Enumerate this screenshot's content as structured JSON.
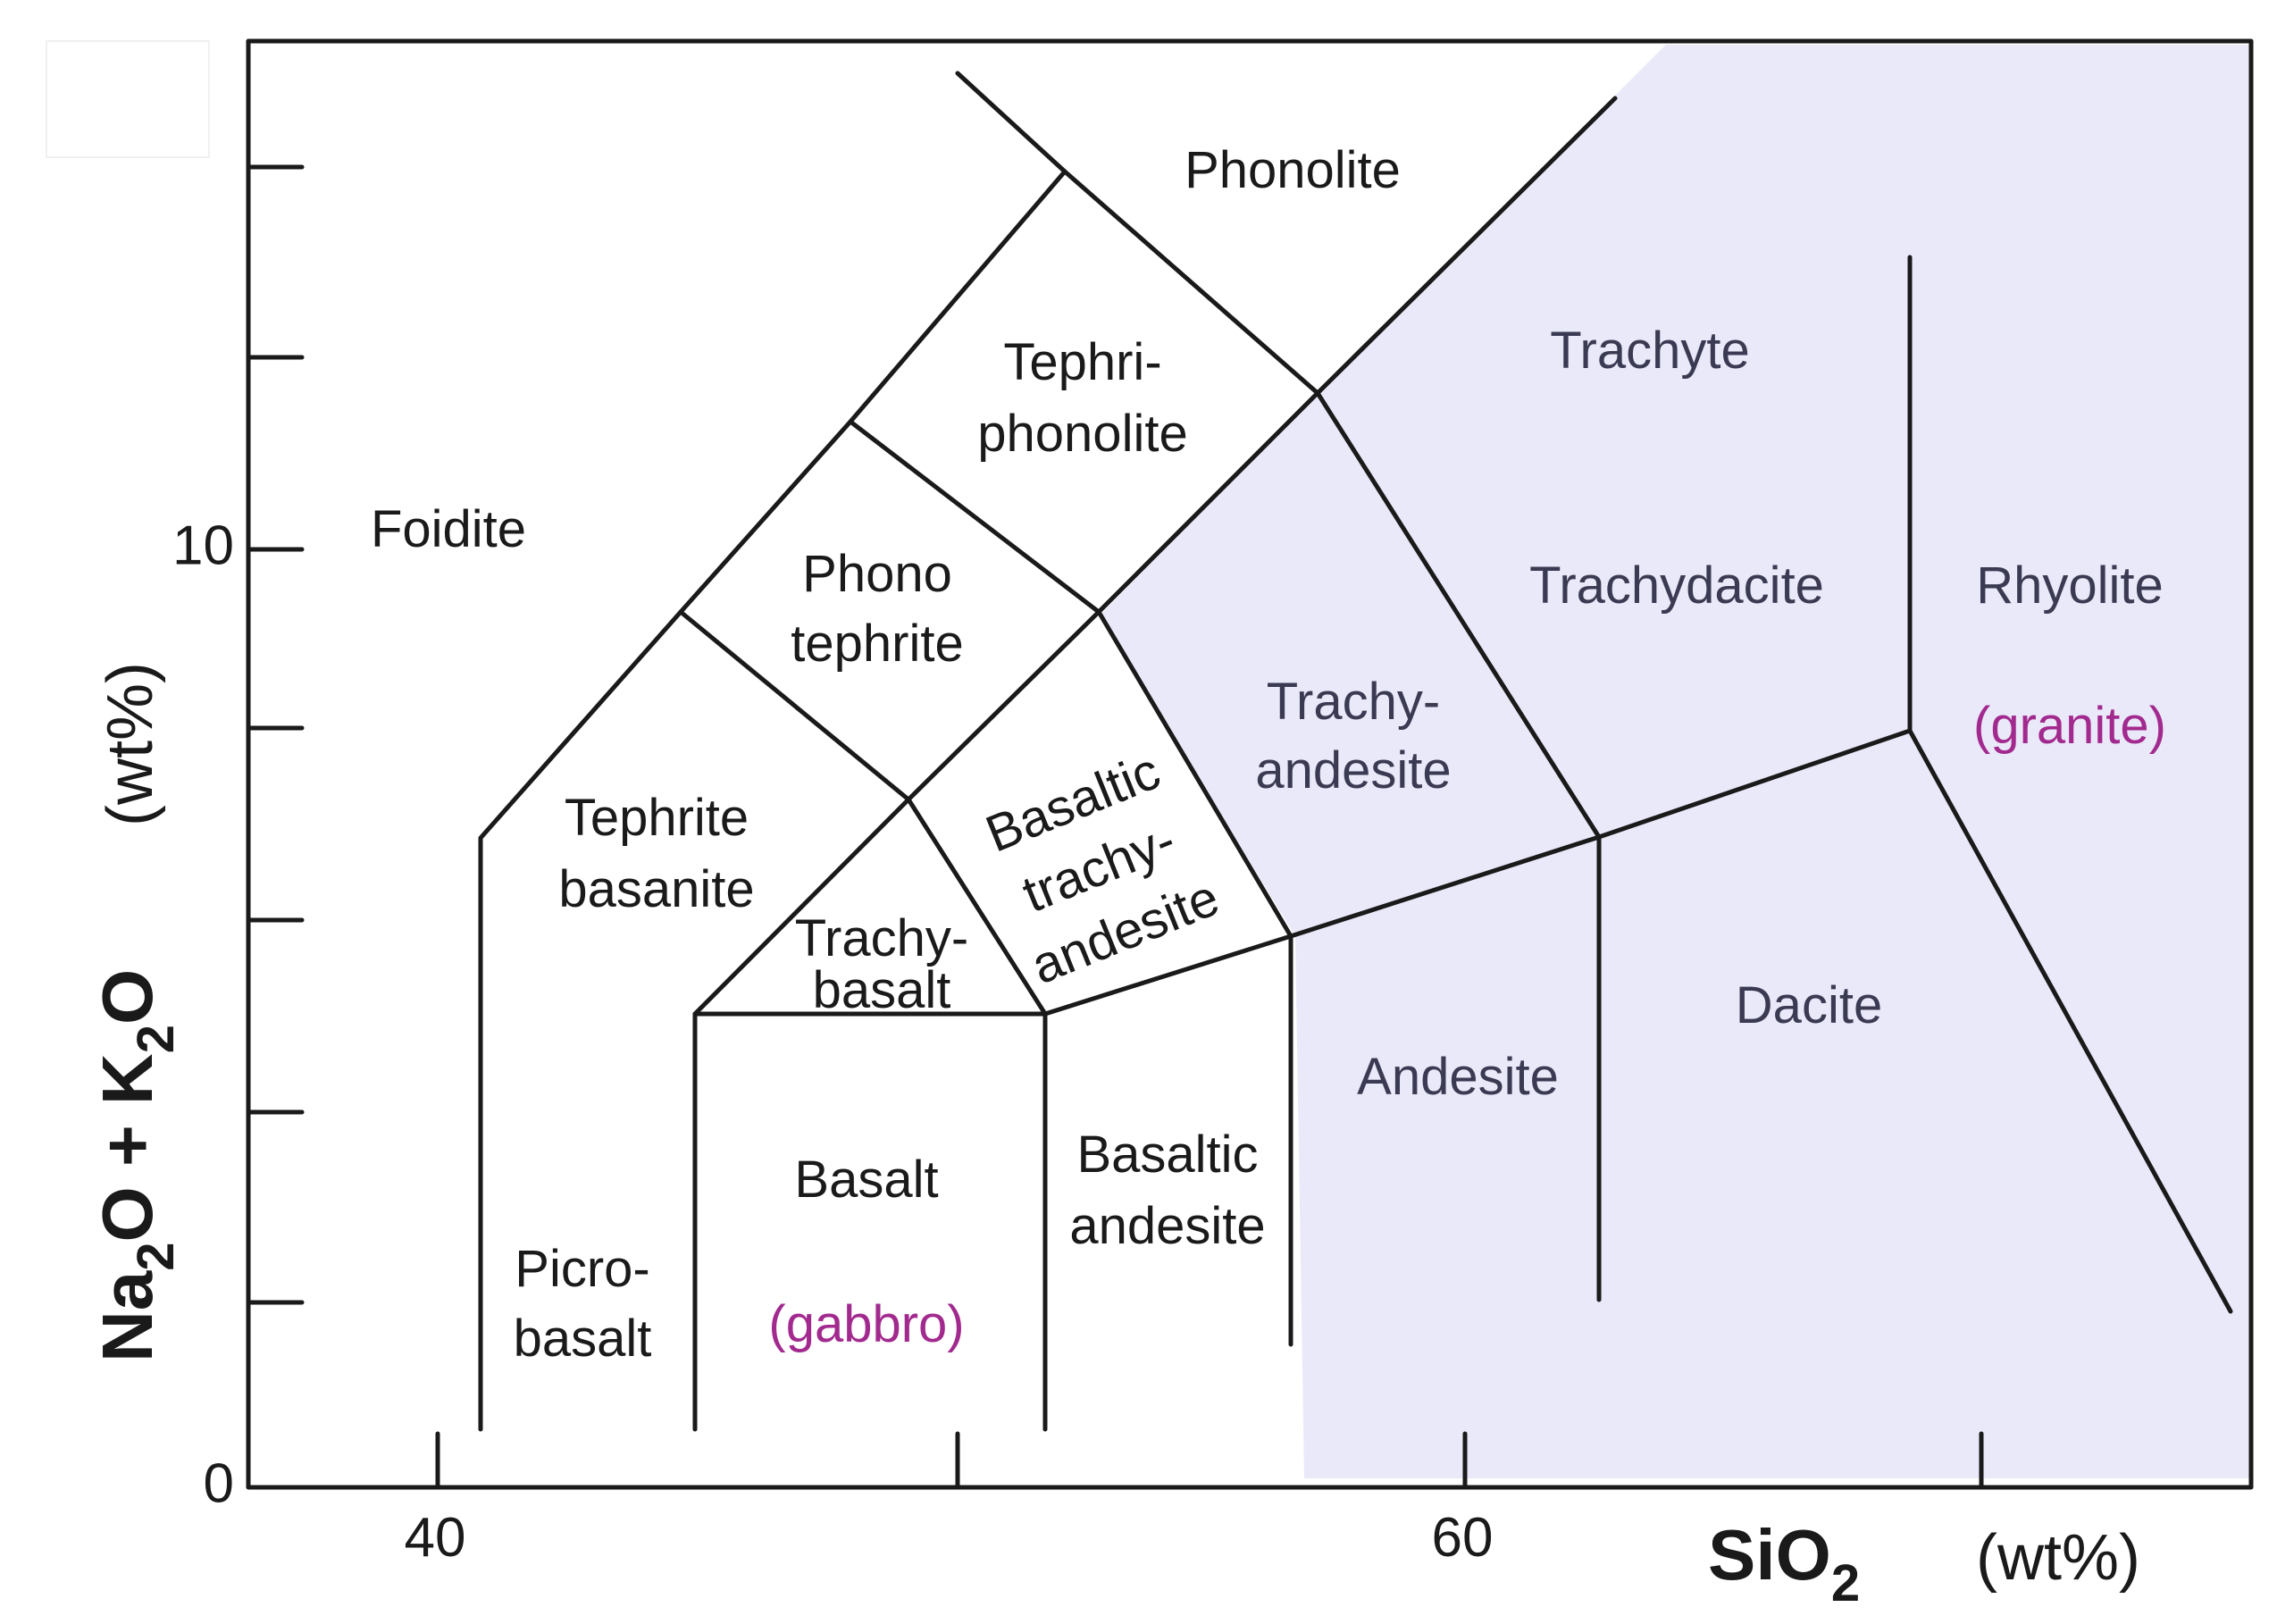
{
  "colors": {
    "highlight": "#eae9f9",
    "line": "#1a1a1a",
    "rock_name": "#a22a8e"
  },
  "axes": {
    "x_label_main": "SiO",
    "x_label_sub": "2",
    "x_unit": "(wt%)",
    "y_label_a": "Na",
    "y_label_a_sub": "2",
    "y_label_b": "O + K",
    "y_label_b_sub": "2",
    "y_label_c": "O",
    "y_unit": "(wt%)",
    "x_ticks": [
      "40",
      "60"
    ],
    "y_ticks": [
      "0",
      "10"
    ]
  },
  "fields": {
    "phonolite": "Phonolite",
    "tephriphonolite_1": "Tephri-",
    "tephriphonolite_2": "phonolite",
    "foidite": "Foidite",
    "phonotephrite_1": "Phono",
    "phonotephrite_2": "tephrite",
    "tephrite_basanite_1": "Tephrite",
    "tephrite_basanite_2": "basanite",
    "basaltic_trachyandesite_1": "Basaltic",
    "basaltic_trachyandesite_2": "trachy-",
    "basaltic_trachyandesite_3": "andesite",
    "trachybasalt_1": "Trachy-",
    "trachybasalt_2": "basalt",
    "trachyte": "Trachyte",
    "trachydacite": "Trachydacite",
    "rhyolite": "Rhyolite",
    "granite": "(granite)",
    "trachyandesite_1": "Trachy-",
    "trachyandesite_2": "andesite",
    "dacite": "Dacite",
    "andesite": "Andesite",
    "basalt": "Basalt",
    "gabbro": "(gabbro)",
    "basaltic_andesite_1": "Basaltic",
    "basaltic_andesite_2": "andesite",
    "picrobasalt_1": "Picro-",
    "picrobasalt_2": "basalt"
  }
}
